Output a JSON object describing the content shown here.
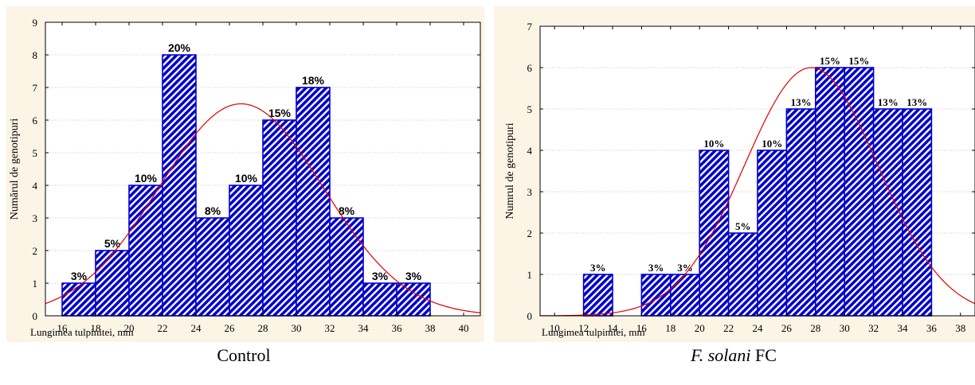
{
  "colors": {
    "background": "#fcf5e6",
    "bar_fill": "#0000cc",
    "bar_stripe": "#ffffff",
    "bar_edge": "#0000cc",
    "curve": "#e00000"
  },
  "captions": {
    "left": "Control",
    "right_italic": "F. solani",
    "right_rest": " FC"
  },
  "chart_data": [
    {
      "type": "bar",
      "subtype": "histogram",
      "xlabel": "Lungimea tulpinitei, mm",
      "ylabel": "Numărul de genotipuri",
      "xlim": [
        15,
        41
      ],
      "ylim": [
        0,
        9
      ],
      "xticks": [
        16,
        18,
        20,
        22,
        24,
        26,
        28,
        30,
        32,
        34,
        36,
        38,
        40
      ],
      "yticks": [
        0,
        1,
        2,
        3,
        4,
        5,
        6,
        7,
        8,
        9
      ],
      "grid": true,
      "bins": [
        {
          "x0": 16,
          "x1": 18,
          "value": 1,
          "label": "3%"
        },
        {
          "x0": 18,
          "x1": 20,
          "value": 2,
          "label": "5%"
        },
        {
          "x0": 20,
          "x1": 22,
          "value": 4,
          "label": "10%"
        },
        {
          "x0": 22,
          "x1": 24,
          "value": 8,
          "label": "20%"
        },
        {
          "x0": 24,
          "x1": 26,
          "value": 3,
          "label": "8%"
        },
        {
          "x0": 26,
          "x1": 28,
          "value": 4,
          "label": "10%"
        },
        {
          "x0": 28,
          "x1": 30,
          "value": 6,
          "label": "15%"
        },
        {
          "x0": 30,
          "x1": 32,
          "value": 7,
          "label": "18%"
        },
        {
          "x0": 32,
          "x1": 34,
          "value": 3,
          "label": "8%"
        },
        {
          "x0": 34,
          "x1": 36,
          "value": 1,
          "label": "3%"
        },
        {
          "x0": 36,
          "x1": 38,
          "value": 1,
          "label": "3%"
        }
      ],
      "normal_curve": {
        "mean": 26.7,
        "sd": 4.9,
        "peak": 6.5
      }
    },
    {
      "type": "bar",
      "subtype": "histogram",
      "xlabel": "Lungimea tulpinitei, mm",
      "ylabel": "Numrul de genotipuri",
      "xlim": [
        9,
        39
      ],
      "ylim": [
        0,
        7
      ],
      "xticks": [
        10,
        12,
        14,
        16,
        18,
        20,
        22,
        24,
        26,
        28,
        30,
        32,
        34,
        36,
        38
      ],
      "yticks": [
        0,
        1,
        2,
        3,
        4,
        5,
        6,
        7
      ],
      "grid": true,
      "bins": [
        {
          "x0": 12,
          "x1": 14,
          "value": 1,
          "label": "3%"
        },
        {
          "x0": 16,
          "x1": 18,
          "value": 1,
          "label": "3%"
        },
        {
          "x0": 18,
          "x1": 20,
          "value": 1,
          "label": "3%"
        },
        {
          "x0": 20,
          "x1": 22,
          "value": 4,
          "label": "10%"
        },
        {
          "x0": 22,
          "x1": 24,
          "value": 2,
          "label": "5%"
        },
        {
          "x0": 24,
          "x1": 26,
          "value": 4,
          "label": "10%"
        },
        {
          "x0": 26,
          "x1": 28,
          "value": 5,
          "label": "13%"
        },
        {
          "x0": 28,
          "x1": 30,
          "value": 6,
          "label": "15%"
        },
        {
          "x0": 30,
          "x1": 32,
          "value": 6,
          "label": "15%"
        },
        {
          "x0": 32,
          "x1": 34,
          "value": 5,
          "label": "13%"
        },
        {
          "x0": 34,
          "x1": 36,
          "value": 5,
          "label": "13%"
        }
      ],
      "normal_curve": {
        "mean": 27.7,
        "sd": 4.6,
        "peak": 6.0
      }
    }
  ]
}
